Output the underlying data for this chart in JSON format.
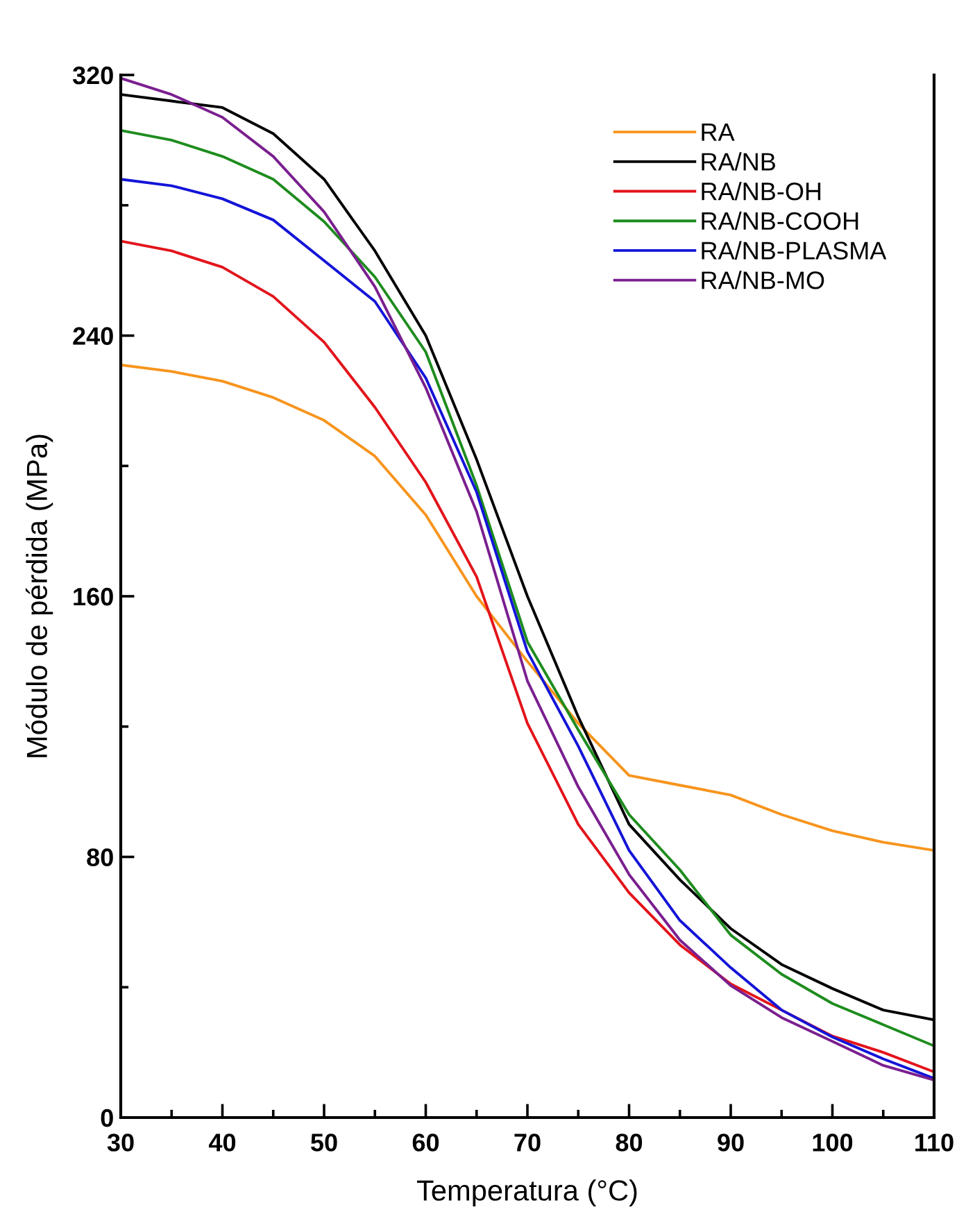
{
  "chart_data": {
    "type": "line",
    "xlabel": "Temperatura (°C)",
    "ylabel": "Módulo de pérdida (MPa)",
    "x": [
      30,
      35,
      40,
      45,
      50,
      55,
      60,
      65,
      70,
      75,
      80,
      85,
      90,
      95,
      100,
      105,
      110
    ],
    "xlim": [
      30,
      110
    ],
    "xticks": [
      30,
      {
        "value": 35,
        "label": null
      },
      40,
      {
        "value": 45,
        "label": null
      },
      50,
      {
        "value": 55,
        "label": null
      },
      60,
      {
        "value": 65,
        "label": null
      },
      70,
      {
        "value": 75,
        "label": null
      },
      80,
      {
        "value": 85,
        "label": null
      },
      90,
      {
        "value": 95,
        "label": null
      },
      100,
      {
        "value": 105,
        "label": null
      },
      110
    ],
    "ylim": [
      0,
      320
    ],
    "yticks": [
      0,
      {
        "value": 40,
        "label": null
      },
      80,
      {
        "value": 120,
        "label": null
      },
      160,
      {
        "value": 200,
        "label": null
      },
      240,
      {
        "value": 280,
        "label": null
      },
      320
    ],
    "grid": false,
    "legend": "top right",
    "line_style": "solid",
    "series": [
      {
        "name": "RA",
        "color": "#f7941d",
        "values": [
          231,
          229,
          226,
          221,
          214,
          203,
          185,
          160,
          140,
          121,
          105,
          102,
          99,
          93,
          88,
          84.5,
          82
        ]
      },
      {
        "name": "RA/NB",
        "color": "#000000",
        "values": [
          314,
          312,
          310,
          302,
          288,
          266,
          240,
          202,
          160,
          123,
          90,
          73,
          58,
          47,
          39.6,
          33,
          30
        ]
      },
      {
        "name": "RA/NB-OH",
        "color": "#e3141b",
        "values": [
          269,
          266,
          261,
          252,
          238,
          218,
          195,
          166,
          121,
          90,
          69,
          53,
          41,
          33,
          25,
          20,
          14
        ]
      },
      {
        "name": "RA/NB-COOH",
        "color": "#1e8c1e",
        "values": [
          303,
          300,
          295,
          288,
          275,
          258,
          235,
          194,
          146,
          119,
          93,
          76,
          56,
          44,
          35,
          28.5,
          22
        ]
      },
      {
        "name": "RA/NB-PLASMA",
        "color": "#1414d8",
        "values": [
          288,
          286,
          282,
          275.5,
          263,
          250.5,
          227,
          192,
          143,
          114,
          82,
          60.5,
          46,
          33,
          24.7,
          18,
          12
        ]
      },
      {
        "name": "RA/NB-MO",
        "color": "#7a1f8f",
        "values": [
          319,
          314,
          307,
          295,
          278,
          255,
          224,
          186,
          134,
          101.5,
          74.6,
          54.5,
          40.5,
          30.7,
          23.4,
          16,
          11.5
        ]
      }
    ]
  }
}
